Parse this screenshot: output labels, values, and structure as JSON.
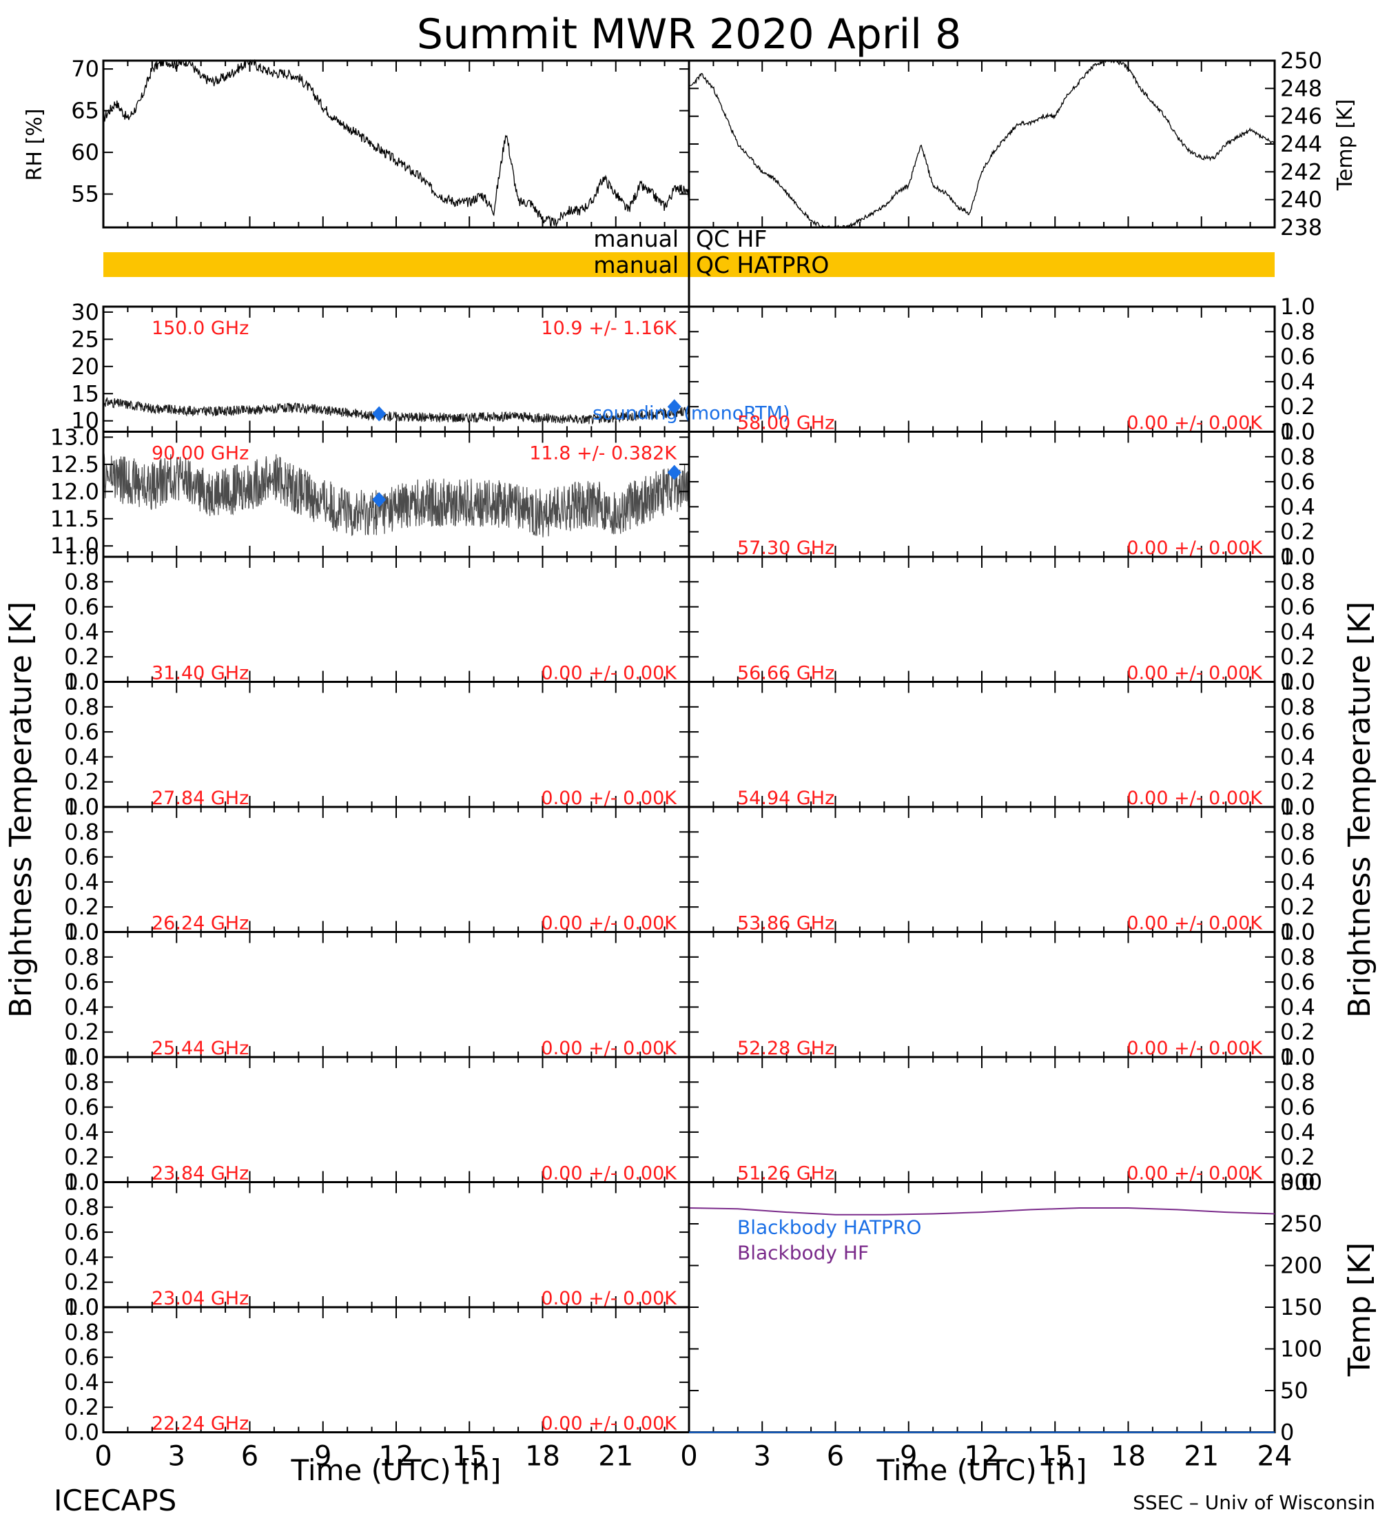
{
  "title": "Summit  MWR  2020  April   8",
  "footer_left": "ICECAPS",
  "footer_right": "SSEC – Univ of Wisconsin",
  "colors": {
    "axis": "#000000",
    "data": "#000000",
    "label_red": "#ff1a1a",
    "label_blue": "#1a6fe6",
    "label_purple": "#7a2a8a",
    "qc_bar": "#fcc400",
    "marker": "#1a6fe6"
  },
  "qc": {
    "hf_left": "manual",
    "hf_right": "QC  HF",
    "hatpro_left": "manual",
    "hatpro_right": "QC  HATPRO"
  },
  "xaxis": {
    "label": "Time  (UTC)  [h]",
    "ticks": [
      "0",
      "3",
      "6",
      "9",
      "12",
      "15",
      "18",
      "21"
    ],
    "ticks_right": [
      "0",
      "3",
      "6",
      "9",
      "12",
      "15",
      "18",
      "21",
      "24"
    ]
  },
  "side_labels": {
    "left_bt": "Brightness  Temperature  [K]",
    "right_bt": "Brightness  Temperature  [K]",
    "rh": "RH  [%]",
    "temp_top": "Temp  [K]",
    "temp_bottom": "Temp  [K]"
  },
  "chart_data": [
    {
      "id": "rh",
      "type": "line",
      "ylabel": "RH  [%]",
      "xlim": [
        0,
        24
      ],
      "ylim": [
        51,
        71
      ],
      "yticks": [
        "55",
        "60",
        "65",
        "70"
      ],
      "x": [
        0,
        0.5,
        1,
        1.5,
        2,
        2.5,
        3,
        3.5,
        4,
        4.5,
        5,
        5.5,
        6,
        6.5,
        7,
        7.5,
        8,
        8.5,
        9,
        9.5,
        10,
        10.5,
        11,
        11.5,
        12,
        12.5,
        13,
        13.5,
        14,
        14.5,
        15,
        15.5,
        16,
        16.5,
        17,
        17.5,
        18,
        18.5,
        19,
        19.5,
        20,
        20.5,
        21,
        21.5,
        22,
        22.5,
        23,
        23.5,
        24
      ],
      "values": [
        64,
        66,
        64,
        66,
        70,
        71,
        70.5,
        71,
        69,
        68.5,
        69,
        70,
        71,
        70,
        69.5,
        69.5,
        69,
        67.5,
        65.5,
        64,
        63,
        62,
        61,
        60,
        59,
        58,
        57,
        55.5,
        54.5,
        54,
        54,
        55,
        53,
        62.5,
        54,
        54,
        52,
        51.5,
        53,
        53,
        54,
        57,
        55,
        53,
        56,
        55,
        53.5,
        56,
        55
      ]
    },
    {
      "id": "temp_top",
      "type": "line",
      "ylabel": "Temp  [K]",
      "xlim": [
        0,
        24
      ],
      "ylim": [
        238,
        250
      ],
      "yticks": [
        "238",
        "240",
        "242",
        "244",
        "246",
        "248",
        "250"
      ],
      "x": [
        0,
        0.5,
        1,
        1.5,
        2,
        2.5,
        3,
        3.5,
        4,
        4.5,
        5,
        5.5,
        6,
        6.5,
        7,
        7.5,
        8,
        8.5,
        9,
        9.5,
        10,
        10.5,
        11,
        11.5,
        12,
        12.5,
        13,
        13.5,
        14,
        14.5,
        15,
        15.5,
        16,
        16.5,
        17,
        17.5,
        18,
        18.5,
        19,
        19.5,
        20,
        20.5,
        21,
        21.5,
        22,
        22.5,
        23,
        23.5,
        24
      ],
      "values": [
        248,
        249,
        248,
        246,
        244,
        243,
        242,
        241.5,
        240.5,
        239.5,
        238.5,
        238,
        238,
        238,
        238.5,
        239,
        239.5,
        240.5,
        241,
        244,
        241,
        240.5,
        239.5,
        239,
        242,
        243.5,
        244.5,
        245.5,
        245.5,
        246,
        246,
        247.5,
        248.5,
        249.5,
        250,
        250,
        249.5,
        248,
        247,
        246,
        244.5,
        243.5,
        243,
        243,
        244,
        244.5,
        245,
        244.5,
        244
      ]
    },
    {
      "id": "ch150",
      "type": "scatter",
      "freq_label": "150.0  GHz",
      "stat_label": "10.9  +/-   1.16K",
      "note": "sounding  (monoRTM)",
      "ylim": [
        8,
        31
      ],
      "yticks": [
        "10",
        "15",
        "20",
        "25",
        "30"
      ],
      "x": [
        0,
        1,
        2,
        3,
        4,
        5,
        6,
        7,
        8,
        9,
        10,
        11,
        12,
        13,
        14,
        15,
        16,
        17,
        18,
        19,
        20,
        21,
        22,
        23,
        24
      ],
      "values": [
        13.5,
        13,
        12.3,
        12,
        11.8,
        11.8,
        12,
        12.2,
        12.4,
        12,
        11.5,
        11,
        10.8,
        10.7,
        10.6,
        10.6,
        10.8,
        10.8,
        10.5,
        10.3,
        10.3,
        10.6,
        11,
        11.3,
        11.8
      ],
      "sounding_x": [
        11.3,
        23.4
      ],
      "sounding_values": [
        11.3,
        12.6
      ]
    },
    {
      "id": "ch90",
      "type": "scatter",
      "freq_label": "90.00  GHz",
      "stat_label": "11.8  +/-  0.382K",
      "ylim": [
        10.8,
        13.1
      ],
      "yticks": [
        "11.0",
        "11.5",
        "12.0",
        "12.5",
        "13.0"
      ],
      "x": [
        0,
        1,
        2,
        3,
        4,
        5,
        6,
        7,
        8,
        9,
        10,
        11,
        12,
        13,
        14,
        15,
        16,
        17,
        18,
        19,
        20,
        21,
        22,
        23,
        24
      ],
      "values": [
        12.3,
        12.2,
        12.1,
        12.3,
        12.0,
        12.0,
        12.1,
        12.3,
        12.0,
        11.8,
        11.6,
        11.6,
        11.7,
        11.8,
        11.8,
        11.8,
        11.8,
        11.7,
        11.6,
        11.7,
        11.8,
        11.6,
        11.8,
        12.0,
        12.1
      ],
      "sounding_x": [
        11.3,
        23.4
      ],
      "sounding_values": [
        11.85,
        12.35
      ]
    },
    {
      "id": "ch3140",
      "type": "line",
      "freq_label": "31.40  GHz",
      "stat_label": "0.00  +/-  0.00K",
      "ylim": [
        0,
        1
      ],
      "yticks": [
        "0.0",
        "0.2",
        "0.4",
        "0.6",
        "0.8",
        "1.0"
      ]
    },
    {
      "id": "ch2784",
      "type": "line",
      "freq_label": "27.84  GHz",
      "stat_label": "0.00  +/-  0.00K",
      "ylim": [
        0,
        1
      ],
      "yticks": [
        "0.0",
        "0.2",
        "0.4",
        "0.6",
        "0.8",
        "1.0"
      ]
    },
    {
      "id": "ch2624",
      "type": "line",
      "freq_label": "26.24  GHz",
      "stat_label": "0.00  +/-  0.00K",
      "ylim": [
        0,
        1
      ],
      "yticks": [
        "0.0",
        "0.2",
        "0.4",
        "0.6",
        "0.8",
        "1.0"
      ]
    },
    {
      "id": "ch2544",
      "type": "line",
      "freq_label": "25.44  GHz",
      "stat_label": "0.00  +/-  0.00K",
      "ylim": [
        0,
        1
      ],
      "yticks": [
        "0.0",
        "0.2",
        "0.4",
        "0.6",
        "0.8",
        "1.0"
      ]
    },
    {
      "id": "ch2384",
      "type": "line",
      "freq_label": "23.84  GHz",
      "stat_label": "0.00  +/-  0.00K",
      "ylim": [
        0,
        1
      ],
      "yticks": [
        "0.0",
        "0.2",
        "0.4",
        "0.6",
        "0.8",
        "1.0"
      ]
    },
    {
      "id": "ch2304",
      "type": "line",
      "freq_label": "23.04  GHz",
      "stat_label": "0.00  +/-  0.00K",
      "ylim": [
        0,
        1
      ],
      "yticks": [
        "0.0",
        "0.2",
        "0.4",
        "0.6",
        "0.8",
        "1.0"
      ]
    },
    {
      "id": "ch2224",
      "type": "line",
      "freq_label": "22.24  GHz",
      "stat_label": "0.00  +/-  0.00K",
      "ylim": [
        0,
        1
      ],
      "yticks": [
        "0.0",
        "0.2",
        "0.4",
        "0.6",
        "0.8",
        "1.0"
      ]
    },
    {
      "id": "ch5800",
      "type": "line",
      "freq_label": "58.00  GHz",
      "stat_label": "0.00  +/-  0.00K",
      "ylim": [
        0,
        1
      ],
      "yticks": [
        "0.0",
        "0.2",
        "0.4",
        "0.6",
        "0.8",
        "1.0"
      ]
    },
    {
      "id": "ch5730",
      "type": "line",
      "freq_label": "57.30  GHz",
      "stat_label": "0.00  +/-  0.00K",
      "ylim": [
        0,
        1
      ],
      "yticks": [
        "0.0",
        "0.2",
        "0.4",
        "0.6",
        "0.8",
        "1.0"
      ]
    },
    {
      "id": "ch5666",
      "type": "line",
      "freq_label": "56.66  GHz",
      "stat_label": "0.00  +/-  0.00K",
      "ylim": [
        0,
        1
      ],
      "yticks": [
        "0.0",
        "0.2",
        "0.4",
        "0.6",
        "0.8",
        "1.0"
      ]
    },
    {
      "id": "ch5494",
      "type": "line",
      "freq_label": "54.94  GHz",
      "stat_label": "0.00  +/-  0.00K",
      "ylim": [
        0,
        1
      ],
      "yticks": [
        "0.0",
        "0.2",
        "0.4",
        "0.6",
        "0.8",
        "1.0"
      ]
    },
    {
      "id": "ch5386",
      "type": "line",
      "freq_label": "53.86  GHz",
      "stat_label": "0.00  +/-  0.00K",
      "ylim": [
        0,
        1
      ],
      "yticks": [
        "0.0",
        "0.2",
        "0.4",
        "0.6",
        "0.8",
        "1.0"
      ]
    },
    {
      "id": "ch5228",
      "type": "line",
      "freq_label": "52.28  GHz",
      "stat_label": "0.00  +/-  0.00K",
      "ylim": [
        0,
        1
      ],
      "yticks": [
        "0.0",
        "0.2",
        "0.4",
        "0.6",
        "0.8",
        "1.0"
      ]
    },
    {
      "id": "ch5126",
      "type": "line",
      "freq_label": "51.26  GHz",
      "stat_label": "0.00  +/-  0.00K",
      "ylim": [
        0,
        1
      ],
      "yticks": [
        "0.0",
        "0.2",
        "0.4",
        "0.6",
        "0.8",
        "1.0"
      ]
    },
    {
      "id": "blackbody",
      "type": "line",
      "ylim": [
        0,
        300
      ],
      "yticks": [
        "0",
        "50",
        "100",
        "150",
        "200",
        "250",
        "300"
      ],
      "series": [
        {
          "name": "Blackbody  HATPRO",
          "x": [
            0,
            24
          ],
          "values": [
            0,
            0
          ]
        },
        {
          "name": "Blackbody  HF",
          "x": [
            0,
            2,
            4,
            6,
            8,
            10,
            12,
            14,
            16,
            18,
            20,
            22,
            24
          ],
          "values": [
            269,
            268,
            264,
            261,
            261,
            262,
            264,
            267,
            269,
            269,
            267,
            264,
            262
          ]
        }
      ]
    }
  ]
}
